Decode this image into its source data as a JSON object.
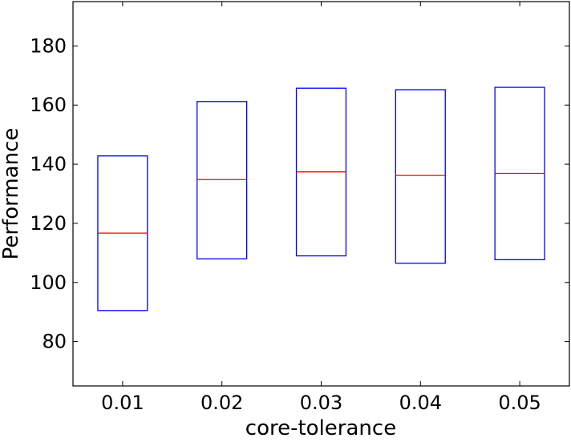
{
  "chart_data": {
    "type": "box",
    "xlabel": "core-tolerance",
    "ylabel": "Performance",
    "categories": [
      "0.01",
      "0.02",
      "0.03",
      "0.04",
      "0.05"
    ],
    "boxes": [
      {
        "category": "0.01",
        "q1": 90.5,
        "median": 116.7,
        "q3": 142.8
      },
      {
        "category": "0.02",
        "q1": 108.0,
        "median": 134.8,
        "q3": 161.2
      },
      {
        "category": "0.03",
        "q1": 109.0,
        "median": 137.4,
        "q3": 165.7
      },
      {
        "category": "0.04",
        "q1": 106.5,
        "median": 136.2,
        "q3": 165.2
      },
      {
        "category": "0.05",
        "q1": 107.7,
        "median": 136.9,
        "q3": 166.0
      }
    ],
    "ylim": [
      65,
      195
    ],
    "xlim": [
      0.005,
      0.055
    ],
    "yticks": [
      80,
      100,
      120,
      140,
      160,
      180
    ],
    "ytick_labels": [
      "80",
      "100",
      "120",
      "140",
      "160",
      "180"
    ],
    "grid": false,
    "colors": {
      "box": "#0000ff",
      "median": "#ff0000",
      "axes": "#000000"
    }
  }
}
